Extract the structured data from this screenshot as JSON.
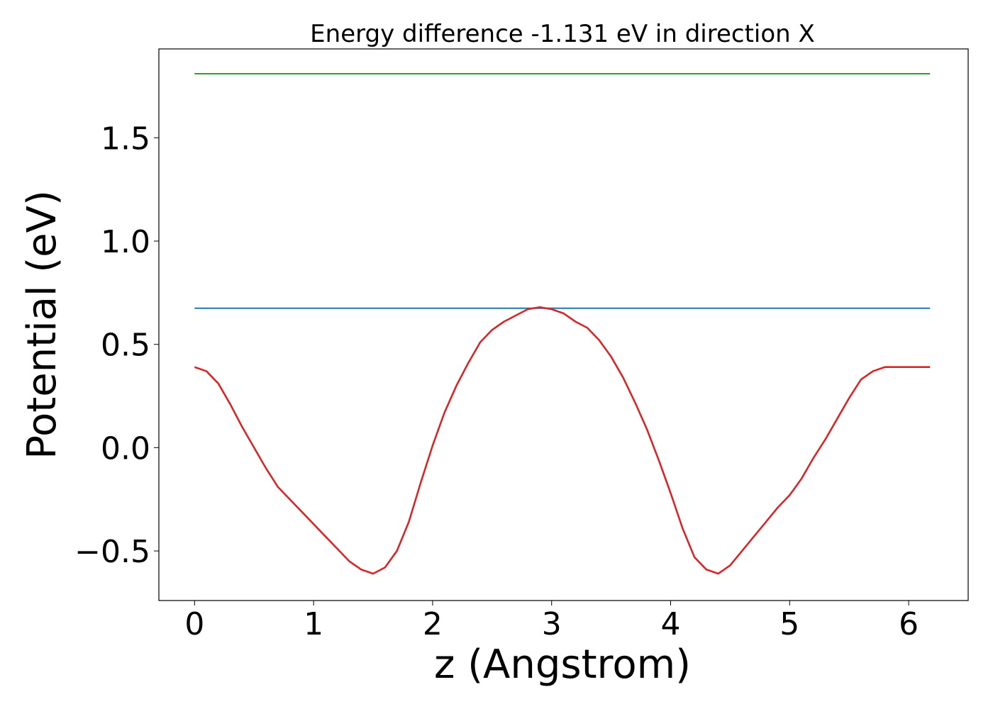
{
  "chart_data": {
    "type": "line",
    "title": "Energy difference -1.131 eV in direction X",
    "xlabel": "z (Angstrom)",
    "ylabel": "Potential (eV)",
    "xlim": [
      -0.3,
      6.5
    ],
    "ylim": [
      -0.74,
      1.93
    ],
    "xticks": [
      0,
      1,
      2,
      3,
      4,
      5,
      6
    ],
    "xtick_labels": [
      "0",
      "1",
      "2",
      "3",
      "4",
      "5",
      "6"
    ],
    "yticks": [
      -0.5,
      0.0,
      0.5,
      1.0,
      1.5
    ],
    "ytick_labels": [
      "−0.5",
      "0.0",
      "0.5",
      "1.0",
      "1.5"
    ],
    "grid": false,
    "legend": "none",
    "series": [
      {
        "color": "#d62728",
        "x": [
          0.0,
          0.1,
          0.2,
          0.3,
          0.4,
          0.5,
          0.6,
          0.7,
          0.8,
          0.9,
          1.0,
          1.1,
          1.2,
          1.3,
          1.4,
          1.5,
          1.6,
          1.7,
          1.8,
          1.9,
          2.0,
          2.1,
          2.2,
          2.3,
          2.4,
          2.5,
          2.6,
          2.7,
          2.8,
          2.9,
          3.0,
          3.1,
          3.2,
          3.3,
          3.4,
          3.5,
          3.6,
          3.7,
          3.8,
          3.9,
          4.0,
          4.1,
          4.2,
          4.3,
          4.4,
          4.5,
          4.6,
          4.7,
          4.8,
          4.9,
          5.0,
          5.1,
          5.2,
          5.3,
          5.4,
          5.5,
          5.6,
          5.7,
          5.8,
          5.9,
          6.0,
          6.1,
          6.18
        ],
        "y": [
          0.39,
          0.37,
          0.31,
          0.21,
          0.1,
          0.0,
          -0.1,
          -0.19,
          -0.25,
          -0.31,
          -0.37,
          -0.43,
          -0.49,
          -0.55,
          -0.59,
          -0.61,
          -0.58,
          -0.5,
          -0.36,
          -0.17,
          0.01,
          0.17,
          0.3,
          0.41,
          0.51,
          0.57,
          0.61,
          0.64,
          0.67,
          0.68,
          0.67,
          0.65,
          0.61,
          0.58,
          0.52,
          0.44,
          0.34,
          0.22,
          0.09,
          -0.06,
          -0.22,
          -0.39,
          -0.53,
          -0.59,
          -0.61,
          -0.57,
          -0.5,
          -0.43,
          -0.36,
          -0.29,
          -0.23,
          -0.15,
          -0.05,
          0.04,
          0.14,
          0.24,
          0.33,
          0.37,
          0.39,
          0.39,
          0.39,
          0.39,
          0.39
        ]
      },
      {
        "color": "#1f77b4",
        "x": [
          0.0,
          6.18
        ],
        "y": [
          0.675,
          0.675
        ]
      },
      {
        "color": "#2ca02c",
        "x": [
          0.0,
          6.18
        ],
        "y": [
          1.81,
          1.81
        ]
      }
    ]
  }
}
